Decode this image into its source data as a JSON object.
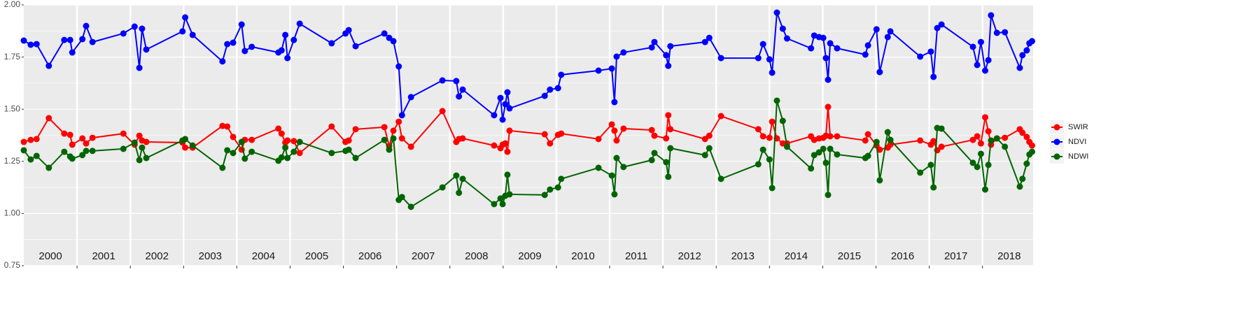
{
  "chart_data": {
    "type": "line",
    "x": [
      2000.0,
      2000.13,
      2000.24,
      2000.47,
      2000.76,
      2000.87,
      2000.91,
      2001.1,
      2001.17,
      2001.29,
      2001.87,
      2002.08,
      2002.17,
      2002.22,
      2002.3,
      2002.98,
      2003.03,
      2003.17,
      2003.73,
      2003.82,
      2003.93,
      2004.09,
      2004.15,
      2004.28,
      2004.78,
      2004.84,
      2004.91,
      2004.95,
      2005.07,
      2005.18,
      2005.78,
      2006.04,
      2006.1,
      2006.23,
      2006.77,
      2006.86,
      2006.94,
      2007.04,
      2007.1,
      2007.27,
      2007.86,
      2008.12,
      2008.17,
      2008.24,
      2008.83,
      2008.95,
      2008.99,
      2009.04,
      2009.08,
      2009.12,
      2009.78,
      2009.88,
      2010.03,
      2010.09,
      2010.79,
      2011.04,
      2011.09,
      2011.13,
      2011.26,
      2011.79,
      2011.84,
      2012.06,
      2012.1,
      2012.14,
      2012.79,
      2012.87,
      2013.09,
      2013.79,
      2013.88,
      2014.0,
      2014.05,
      2014.14,
      2014.25,
      2014.33,
      2014.78,
      2014.84,
      2014.93,
      2015.01,
      2015.06,
      2015.1,
      2015.14,
      2015.27,
      2015.8,
      2015.85,
      2016.01,
      2016.07,
      2016.22,
      2016.27,
      2016.83,
      2017.03,
      2017.08,
      2017.15,
      2017.23,
      2017.82,
      2017.9,
      2017.97,
      2018.05,
      2018.11,
      2018.16,
      2018.27,
      2018.42,
      2018.7,
      2018.75,
      2018.83,
      2018.88,
      2018.93
    ],
    "series": [
      {
        "name": "SWIR",
        "color": "#ff0000",
        "values": [
          1.343,
          1.353,
          1.357,
          1.457,
          1.383,
          1.377,
          1.33,
          1.36,
          1.336,
          1.363,
          1.383,
          1.33,
          1.373,
          1.35,
          1.343,
          1.34,
          1.316,
          1.316,
          1.42,
          1.417,
          1.367,
          1.306,
          1.353,
          1.353,
          1.407,
          1.383,
          1.34,
          1.35,
          1.347,
          1.29,
          1.417,
          1.343,
          1.35,
          1.404,
          1.414,
          1.323,
          1.397,
          1.44,
          1.36,
          1.32,
          1.491,
          1.343,
          1.357,
          1.36,
          1.326,
          1.313,
          1.33,
          1.336,
          1.296,
          1.397,
          1.38,
          1.336,
          1.377,
          1.383,
          1.357,
          1.427,
          1.397,
          1.35,
          1.407,
          1.4,
          1.373,
          1.36,
          1.471,
          1.404,
          1.357,
          1.373,
          1.467,
          1.404,
          1.37,
          1.363,
          1.44,
          1.36,
          1.336,
          1.336,
          1.37,
          1.353,
          1.36,
          1.363,
          1.373,
          1.511,
          1.37,
          1.37,
          1.35,
          1.38,
          1.326,
          1.306,
          1.316,
          1.33,
          1.35,
          1.33,
          1.347,
          1.303,
          1.32,
          1.353,
          1.37,
          1.336,
          1.461,
          1.394,
          1.33,
          1.36,
          1.363,
          1.404,
          1.387,
          1.367,
          1.343,
          1.326
        ]
      },
      {
        "name": "NDVI",
        "color": "#0000ff",
        "values": [
          1.829,
          1.809,
          1.812,
          1.708,
          1.832,
          1.832,
          1.772,
          1.836,
          1.899,
          1.822,
          1.863,
          1.896,
          1.698,
          1.886,
          1.786,
          1.873,
          1.94,
          1.856,
          1.729,
          1.812,
          1.819,
          1.906,
          1.779,
          1.799,
          1.772,
          1.782,
          1.856,
          1.745,
          1.832,
          1.91,
          1.816,
          1.863,
          1.879,
          1.802,
          1.863,
          1.842,
          1.826,
          1.705,
          1.471,
          1.558,
          1.638,
          1.635,
          1.561,
          1.594,
          1.471,
          1.554,
          1.45,
          1.524,
          1.581,
          1.504,
          1.564,
          1.594,
          1.601,
          1.665,
          1.685,
          1.695,
          1.534,
          1.752,
          1.772,
          1.796,
          1.822,
          1.759,
          1.708,
          1.802,
          1.822,
          1.842,
          1.745,
          1.745,
          1.812,
          1.739,
          1.675,
          1.963,
          1.886,
          1.839,
          1.792,
          1.853,
          1.846,
          1.842,
          1.745,
          1.641,
          1.816,
          1.792,
          1.762,
          1.806,
          1.883,
          1.678,
          1.846,
          1.873,
          1.752,
          1.776,
          1.655,
          1.889,
          1.906,
          1.799,
          1.712,
          1.822,
          1.685,
          1.735,
          1.95,
          1.866,
          1.869,
          1.698,
          1.759,
          1.782,
          1.816,
          1.826
        ]
      },
      {
        "name": "NDWI",
        "color": "#006400",
        "values": [
          1.303,
          1.259,
          1.276,
          1.219,
          1.296,
          1.273,
          1.263,
          1.28,
          1.3,
          1.3,
          1.31,
          1.34,
          1.256,
          1.316,
          1.266,
          1.35,
          1.357,
          1.326,
          1.219,
          1.303,
          1.29,
          1.343,
          1.263,
          1.296,
          1.253,
          1.269,
          1.316,
          1.266,
          1.296,
          1.343,
          1.29,
          1.3,
          1.306,
          1.266,
          1.353,
          1.306,
          1.36,
          1.065,
          1.079,
          1.032,
          1.125,
          1.182,
          1.099,
          1.166,
          1.045,
          1.072,
          1.045,
          1.085,
          1.186,
          1.092,
          1.089,
          1.115,
          1.125,
          1.166,
          1.219,
          1.182,
          1.092,
          1.266,
          1.223,
          1.256,
          1.29,
          1.246,
          1.176,
          1.313,
          1.28,
          1.313,
          1.166,
          1.236,
          1.306,
          1.259,
          1.122,
          1.541,
          1.444,
          1.32,
          1.216,
          1.28,
          1.293,
          1.31,
          1.243,
          1.089,
          1.31,
          1.283,
          1.266,
          1.276,
          1.343,
          1.159,
          1.39,
          1.353,
          1.196,
          1.233,
          1.125,
          1.41,
          1.407,
          1.243,
          1.223,
          1.286,
          1.115,
          1.233,
          1.35,
          1.36,
          1.32,
          1.129,
          1.166,
          1.239,
          1.283,
          1.296
        ]
      }
    ],
    "xlim": [
      2000,
      2018.95
    ],
    "xticks": [
      {
        "value": 2000.5,
        "label": "2000"
      },
      {
        "value": 2001.5,
        "label": "2001"
      },
      {
        "value": 2002.5,
        "label": "2002"
      },
      {
        "value": 2003.5,
        "label": "2003"
      },
      {
        "value": 2004.5,
        "label": "2004"
      },
      {
        "value": 2005.5,
        "label": "2005"
      },
      {
        "value": 2006.5,
        "label": "2006"
      },
      {
        "value": 2007.5,
        "label": "2007"
      },
      {
        "value": 2008.5,
        "label": "2008"
      },
      {
        "value": 2009.5,
        "label": "2009"
      },
      {
        "value": 2010.5,
        "label": "2010"
      },
      {
        "value": 2011.5,
        "label": "2011"
      },
      {
        "value": 2012.5,
        "label": "2012"
      },
      {
        "value": 2013.5,
        "label": "2013"
      },
      {
        "value": 2014.5,
        "label": "2014"
      },
      {
        "value": 2015.5,
        "label": "2015"
      },
      {
        "value": 2016.5,
        "label": "2016"
      },
      {
        "value": 2017.5,
        "label": "2017"
      },
      {
        "value": 2018.5,
        "label": "2018"
      }
    ],
    "ylim": [
      0.75,
      2.0
    ],
    "yticks": [
      0.75,
      {
        "value": 1.0,
        "label": "1.00"
      },
      1.25,
      {
        "value": 1.5,
        "label": "1.50"
      },
      1.75,
      {
        "value": 2.0,
        "label": "2.00"
      }
    ],
    "grid": true,
    "legend": "right"
  }
}
